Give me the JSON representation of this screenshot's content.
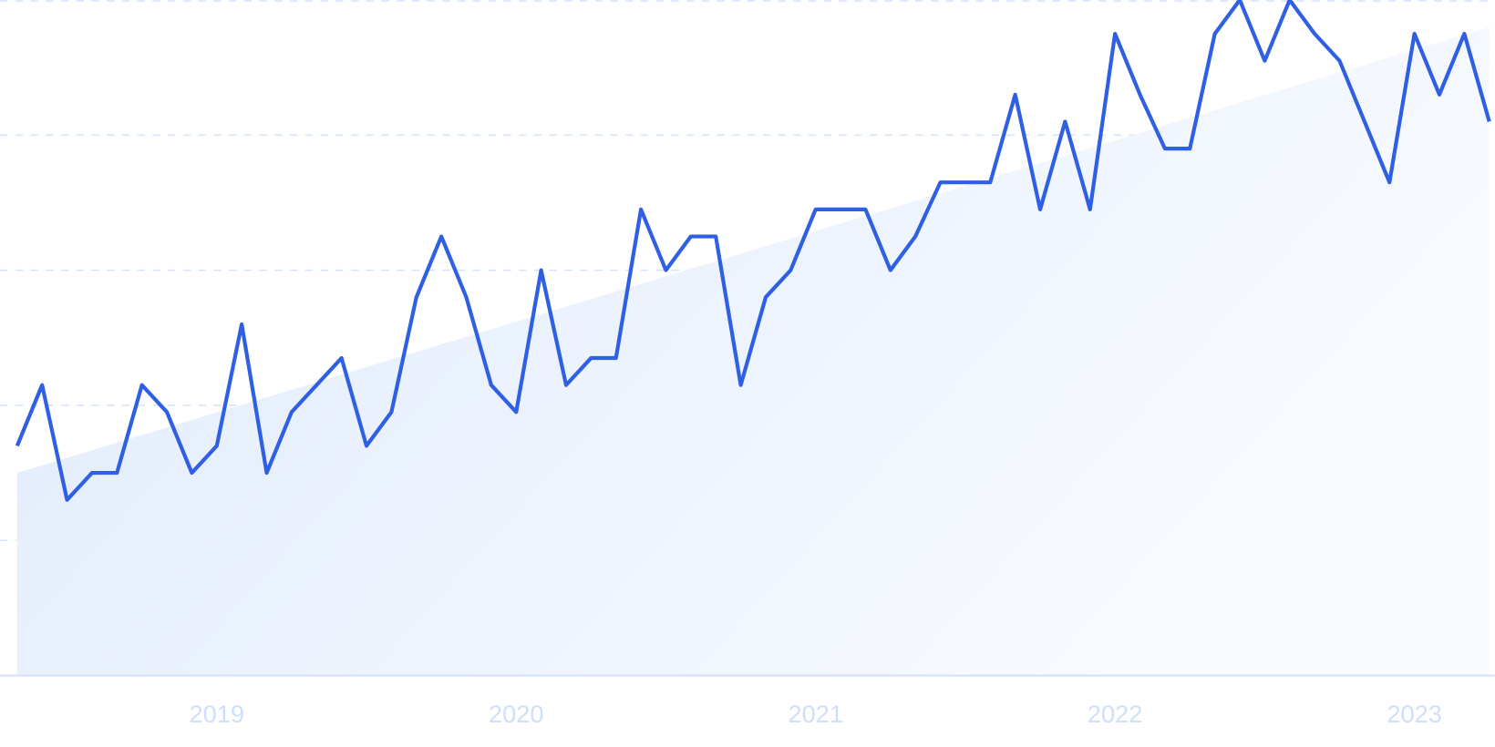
{
  "chart_data": {
    "type": "line",
    "title": "",
    "xlabel": "",
    "ylabel": "",
    "ylim": [
      0,
      100
    ],
    "grid": true,
    "x_tick_labels": [
      "2019",
      "2020",
      "2021",
      "2022",
      "2023"
    ],
    "x_start": "2018-05",
    "x_end": "2023-04",
    "series": [
      {
        "values": [
          34,
          43,
          26,
          30,
          30,
          43,
          39,
          30,
          34,
          52,
          30,
          39,
          43,
          47,
          34,
          39,
          56,
          65,
          56,
          43,
          39,
          60,
          43,
          47,
          47,
          69,
          60,
          65,
          65,
          43,
          56,
          60,
          69,
          69,
          69,
          60,
          65,
          73,
          73,
          73,
          86,
          69,
          82,
          69,
          95,
          86,
          78,
          78,
          95,
          100,
          91,
          100,
          95,
          91,
          82,
          73,
          95,
          86,
          95,
          82
        ],
        "color": "#2f5fe3"
      }
    ],
    "trend": {
      "start": 30,
      "end": 96,
      "color": "#e1edfc"
    }
  }
}
